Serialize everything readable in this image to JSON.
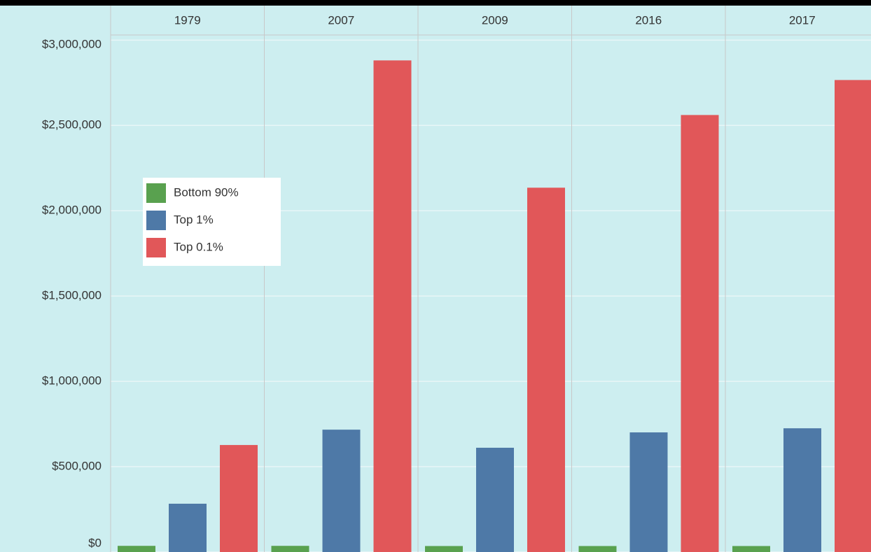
{
  "chart_data": {
    "type": "bar",
    "categories": [
      "1979",
      "2007",
      "2009",
      "2016",
      "2017"
    ],
    "series": [
      {
        "name": "Bottom 90%",
        "color": "#59a14f",
        "values": [
          36000,
          36000,
          35000,
          35000,
          35000
        ]
      },
      {
        "name": "Top 1%",
        "color": "#4e79a7",
        "values": [
          283000,
          717000,
          611000,
          701000,
          725000
        ]
      },
      {
        "name": "Top 0.1%",
        "color": "#e15759",
        "values": [
          627000,
          2881000,
          2135000,
          2561000,
          2766000
        ]
      }
    ],
    "ylim": [
      0,
      3030000
    ],
    "yticks": [
      {
        "value": 0,
        "label": "$0"
      },
      {
        "value": 500000,
        "label": "$500,000"
      },
      {
        "value": 1000000,
        "label": "$1,000,000"
      },
      {
        "value": 1500000,
        "label": "$1,500,000"
      },
      {
        "value": 2000000,
        "label": "$2,000,000"
      },
      {
        "value": 2500000,
        "label": "$2,500,000"
      },
      {
        "value": 3000000,
        "label": "$3,000,000"
      }
    ],
    "grid": true,
    "legend": "upper left"
  }
}
